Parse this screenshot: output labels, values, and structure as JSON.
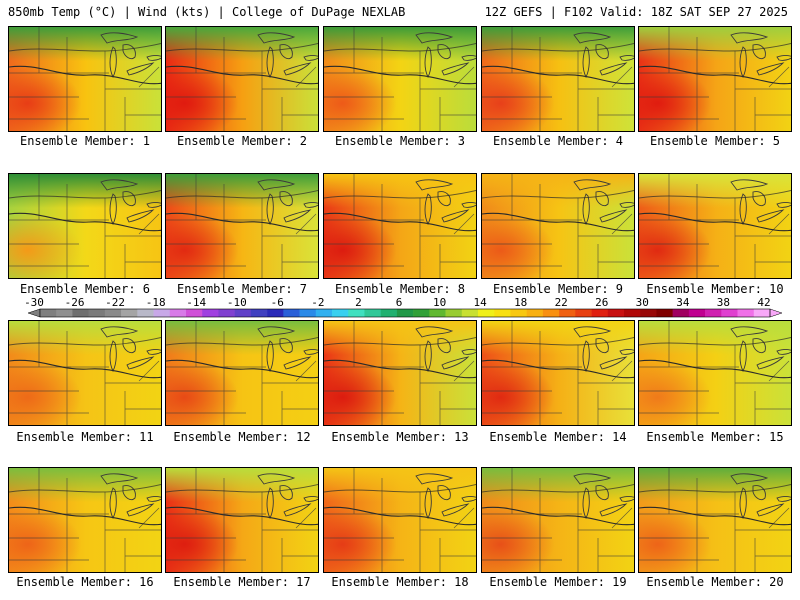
{
  "header": {
    "left_title": "850mb Temp (°C) | Wind (kts) | College of DuPage NEXLAB",
    "right_title": "12Z GEFS | F102 Valid: 18Z SAT SEP 27 2025"
  },
  "panel_label_prefix": "Ensemble Member: ",
  "members": [
    {
      "label": "Ensemble Member: 1",
      "west": "#f06a1c",
      "mid": "#f8c310",
      "east": "#c8e23a",
      "north": "#3f9e3a",
      "hot": "#e83d16"
    },
    {
      "label": "Ensemble Member: 2",
      "west": "#ea2a14",
      "mid": "#f6a012",
      "east": "#c9e23a",
      "north": "#4aa83c",
      "hot": "#e01a10"
    },
    {
      "label": "Ensemble Member: 3",
      "west": "#f28a1a",
      "mid": "#f3d414",
      "east": "#b9dd3c",
      "north": "#3d9c38",
      "hot": "#ee5a18"
    },
    {
      "label": "Ensemble Member: 4",
      "west": "#f0681a",
      "mid": "#f6c012",
      "east": "#cde43a",
      "north": "#3f9e3a",
      "hot": "#e8401a"
    },
    {
      "label": "Ensemble Member: 5",
      "west": "#ea3216",
      "mid": "#f5a416",
      "east": "#f2d414",
      "north": "#9fce3e",
      "hot": "#e01c10"
    },
    {
      "label": "Ensemble Member: 6",
      "west": "#a8d23e",
      "mid": "#f3d818",
      "east": "#f6c414",
      "north": "#2f8f36",
      "hot": "#f49a18"
    },
    {
      "label": "Ensemble Member: 7",
      "west": "#ee4a18",
      "mid": "#f6b614",
      "east": "#d9e43a",
      "north": "#3f9e3a",
      "hot": "#e22a12"
    },
    {
      "label": "Ensemble Member: 8",
      "west": "#ea3a16",
      "mid": "#f4a616",
      "east": "#f2d414",
      "north": "#f6c414",
      "hot": "#dc1c10"
    },
    {
      "label": "Ensemble Member: 9",
      "west": "#f08a1a",
      "mid": "#f6c414",
      "east": "#c9e23a",
      "north": "#f5b416",
      "hot": "#ec5a18"
    },
    {
      "label": "Ensemble Member: 10",
      "west": "#ee5c18",
      "mid": "#f5b016",
      "east": "#f2d414",
      "north": "#d9e43a",
      "hot": "#e02a12"
    },
    {
      "label": "Ensemble Member: 11",
      "west": "#f28a1a",
      "mid": "#f5c416",
      "east": "#f2d414",
      "north": "#b9dd3c",
      "hot": "#ee6a18"
    },
    {
      "label": "Ensemble Member: 12",
      "west": "#f07a1a",
      "mid": "#f6c414",
      "east": "#f4d014",
      "north": "#79be3e",
      "hot": "#e84a16"
    },
    {
      "label": "Ensemble Member: 13",
      "west": "#ea3616",
      "mid": "#f5b416",
      "east": "#c9e23a",
      "north": "#f5c416",
      "hot": "#dc1c10"
    },
    {
      "label": "Ensemble Member: 14",
      "west": "#ee5018",
      "mid": "#f5b016",
      "east": "#e8e23a",
      "north": "#f2d414",
      "hot": "#e02a12"
    },
    {
      "label": "Ensemble Member: 15",
      "west": "#f5a416",
      "mid": "#f4d014",
      "east": "#c9e23a",
      "north": "#b9dd3c",
      "hot": "#f07a1a"
    },
    {
      "label": "Ensemble Member: 16",
      "west": "#f38c1a",
      "mid": "#f6c614",
      "east": "#f2d414",
      "north": "#7cbf3e",
      "hot": "#ee6418"
    },
    {
      "label": "Ensemble Member: 17",
      "west": "#ea3016",
      "mid": "#f5a816",
      "east": "#f2d414",
      "north": "#b9dd3c",
      "hot": "#de1e10"
    },
    {
      "label": "Ensemble Member: 18",
      "west": "#f0661a",
      "mid": "#f5b416",
      "east": "#f2d414",
      "north": "#f5c416",
      "hot": "#e63c16"
    },
    {
      "label": "Ensemble Member: 19",
      "west": "#f08a1a",
      "mid": "#f5b416",
      "east": "#f2d414",
      "north": "#79be3e",
      "hot": "#e85018"
    },
    {
      "label": "Ensemble Member: 20",
      "west": "#f29a1a",
      "mid": "#f5c016",
      "east": "#f2d414",
      "north": "#5fae3c",
      "hot": "#ee6418"
    }
  ],
  "colorbar": {
    "tick_labels": [
      "-30",
      "-26",
      "-22",
      "-18",
      "-14",
      "-10",
      "-6",
      "-2",
      "2",
      "6",
      "10",
      "14",
      "18",
      "22",
      "26",
      "30",
      "34",
      "38",
      "42"
    ],
    "colors": [
      "#7f7f7f",
      "#8f8f8f",
      "#6f6f6f",
      "#7a7a7a",
      "#8a8a8a",
      "#a4a4a4",
      "#b8b8c8",
      "#c8a8e8",
      "#d87ae8",
      "#d050d8",
      "#a040e0",
      "#8040d0",
      "#6040c8",
      "#4040c0",
      "#2a2ab8",
      "#2a60d8",
      "#2a8ae8",
      "#30b0f0",
      "#38d0f0",
      "#40e0c0",
      "#30c898",
      "#20b070",
      "#209848",
      "#30a038",
      "#60b830",
      "#98cc30",
      "#c8e030",
      "#f0f018",
      "#f8e010",
      "#f8c810",
      "#f8b010",
      "#f89010",
      "#f06010",
      "#e84010",
      "#e02010",
      "#c81010",
      "#b00808",
      "#980808",
      "#800000",
      "#a00060",
      "#c00090",
      "#d020b0",
      "#e040d0",
      "#f070e8",
      "#f8a8f8"
    ]
  },
  "colors": {
    "boundary": "#3a3a3a",
    "contour": "#2a2a2a",
    "frame": "#000000"
  }
}
